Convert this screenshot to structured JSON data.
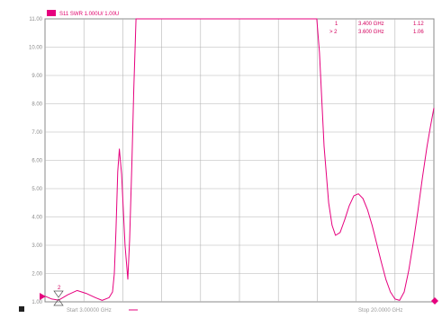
{
  "trace_header": {
    "label": "S11 SWR 1.000U/  1.00U",
    "color": "#e6007e"
  },
  "markers": [
    {
      "id": "1",
      "freq": "3.400 GHz",
      "value": "1.12"
    },
    {
      "id": "> 2",
      "freq": "3.600 GHz",
      "value": "1.06"
    }
  ],
  "start_label": "Start  3.00000 GHz",
  "stop_label": "Stop  20.0000 GHz",
  "marker_flag": "2",
  "chart_data": {
    "type": "line",
    "title": "",
    "xlabel": "",
    "ylabel": "",
    "xlim": [
      3.0,
      20.0
    ],
    "ylim": [
      1.0,
      11.0
    ],
    "y_ticks": [
      "11.00",
      "10.00",
      "9.00",
      "8.00",
      "7.00",
      "6.00",
      "5.00",
      "4.00",
      "3.00",
      "2.00",
      "1.00"
    ],
    "grid": true,
    "series": [
      {
        "color": "#e6007e",
        "x": [
          3.0,
          3.3,
          3.6,
          4.0,
          4.4,
          4.8,
          5.2,
          5.5,
          5.8,
          5.95,
          6.03,
          6.1,
          6.18,
          6.25,
          6.35,
          6.5,
          6.62,
          6.7,
          6.8,
          6.88,
          6.98,
          7.05,
          7.15,
          8.0,
          10.0,
          12.0,
          14.0,
          14.8,
          14.88,
          15.0,
          15.2,
          15.4,
          15.55,
          15.7,
          15.9,
          16.1,
          16.3,
          16.5,
          16.7,
          16.9,
          17.1,
          17.3,
          17.5,
          17.7,
          17.9,
          18.1,
          18.3,
          18.5,
          18.7,
          18.9,
          19.1,
          19.3,
          19.5,
          19.7,
          19.85,
          20.0
        ],
        "y": [
          1.2,
          1.1,
          1.06,
          1.25,
          1.4,
          1.3,
          1.15,
          1.05,
          1.15,
          1.35,
          2.0,
          3.5,
          5.6,
          6.4,
          5.5,
          3.0,
          1.8,
          3.2,
          6.0,
          8.5,
          11.0,
          11.0,
          11.0,
          11.0,
          11.0,
          11.0,
          11.0,
          11.0,
          11.0,
          9.8,
          6.5,
          4.5,
          3.7,
          3.35,
          3.45,
          3.9,
          4.4,
          4.75,
          4.82,
          4.65,
          4.25,
          3.7,
          3.05,
          2.4,
          1.8,
          1.35,
          1.1,
          1.05,
          1.35,
          2.1,
          3.1,
          4.2,
          5.4,
          6.5,
          7.2,
          7.85
        ]
      }
    ]
  }
}
